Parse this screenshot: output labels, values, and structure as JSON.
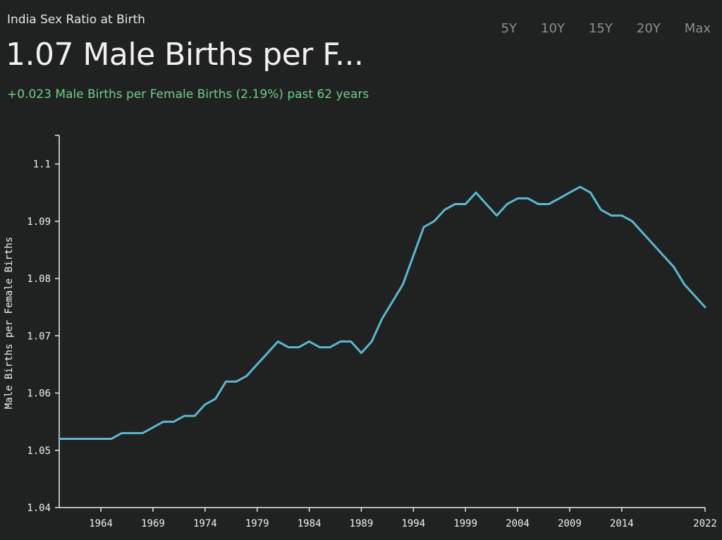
{
  "header": {
    "chart_title": "India Sex Ratio at Birth",
    "headline": "1.07 Male Births per F...",
    "change_text": "+0.023 Male Births per Female Births (2.19%) past 62 years"
  },
  "ranges": [
    "5Y",
    "10Y",
    "15Y",
    "20Y",
    "Max"
  ],
  "colors": {
    "line": "#5bb8d0",
    "change": "#6fd08a",
    "background": "#202121"
  },
  "chart_data": {
    "type": "line",
    "ylabel": "Male Births per Female Births",
    "xlabel": "",
    "ylim": [
      1.04,
      1.105
    ],
    "xlim": [
      1960,
      2022
    ],
    "y_ticks": [
      "1.04",
      "1.05",
      "1.06",
      "1.07",
      "1.08",
      "1.09",
      "1.1"
    ],
    "x_ticks": [
      "1964",
      "1969",
      "1974",
      "1979",
      "1984",
      "1989",
      "1994",
      "1999",
      "2004",
      "2009",
      "2014",
      "2022"
    ],
    "x": [
      1960,
      1961,
      1962,
      1963,
      1964,
      1965,
      1966,
      1967,
      1968,
      1969,
      1970,
      1971,
      1972,
      1973,
      1974,
      1975,
      1976,
      1977,
      1978,
      1979,
      1980,
      1981,
      1982,
      1983,
      1984,
      1985,
      1986,
      1987,
      1988,
      1989,
      1990,
      1991,
      1992,
      1993,
      1994,
      1995,
      1996,
      1997,
      1998,
      1999,
      2000,
      2001,
      2002,
      2003,
      2004,
      2005,
      2006,
      2007,
      2008,
      2009,
      2010,
      2011,
      2012,
      2013,
      2014,
      2015,
      2016,
      2017,
      2018,
      2019,
      2020,
      2021,
      2022
    ],
    "values": [
      1.052,
      1.052,
      1.052,
      1.052,
      1.052,
      1.052,
      1.053,
      1.053,
      1.053,
      1.054,
      1.055,
      1.055,
      1.056,
      1.056,
      1.058,
      1.059,
      1.062,
      1.062,
      1.063,
      1.065,
      1.067,
      1.069,
      1.068,
      1.068,
      1.069,
      1.068,
      1.068,
      1.069,
      1.069,
      1.067,
      1.069,
      1.073,
      1.076,
      1.079,
      1.084,
      1.089,
      1.09,
      1.092,
      1.093,
      1.093,
      1.095,
      1.093,
      1.091,
      1.093,
      1.094,
      1.094,
      1.093,
      1.093,
      1.094,
      1.095,
      1.096,
      1.095,
      1.092,
      1.091,
      1.091,
      1.09,
      1.088,
      1.086,
      1.084,
      1.082,
      1.079,
      1.077,
      1.075
    ]
  }
}
